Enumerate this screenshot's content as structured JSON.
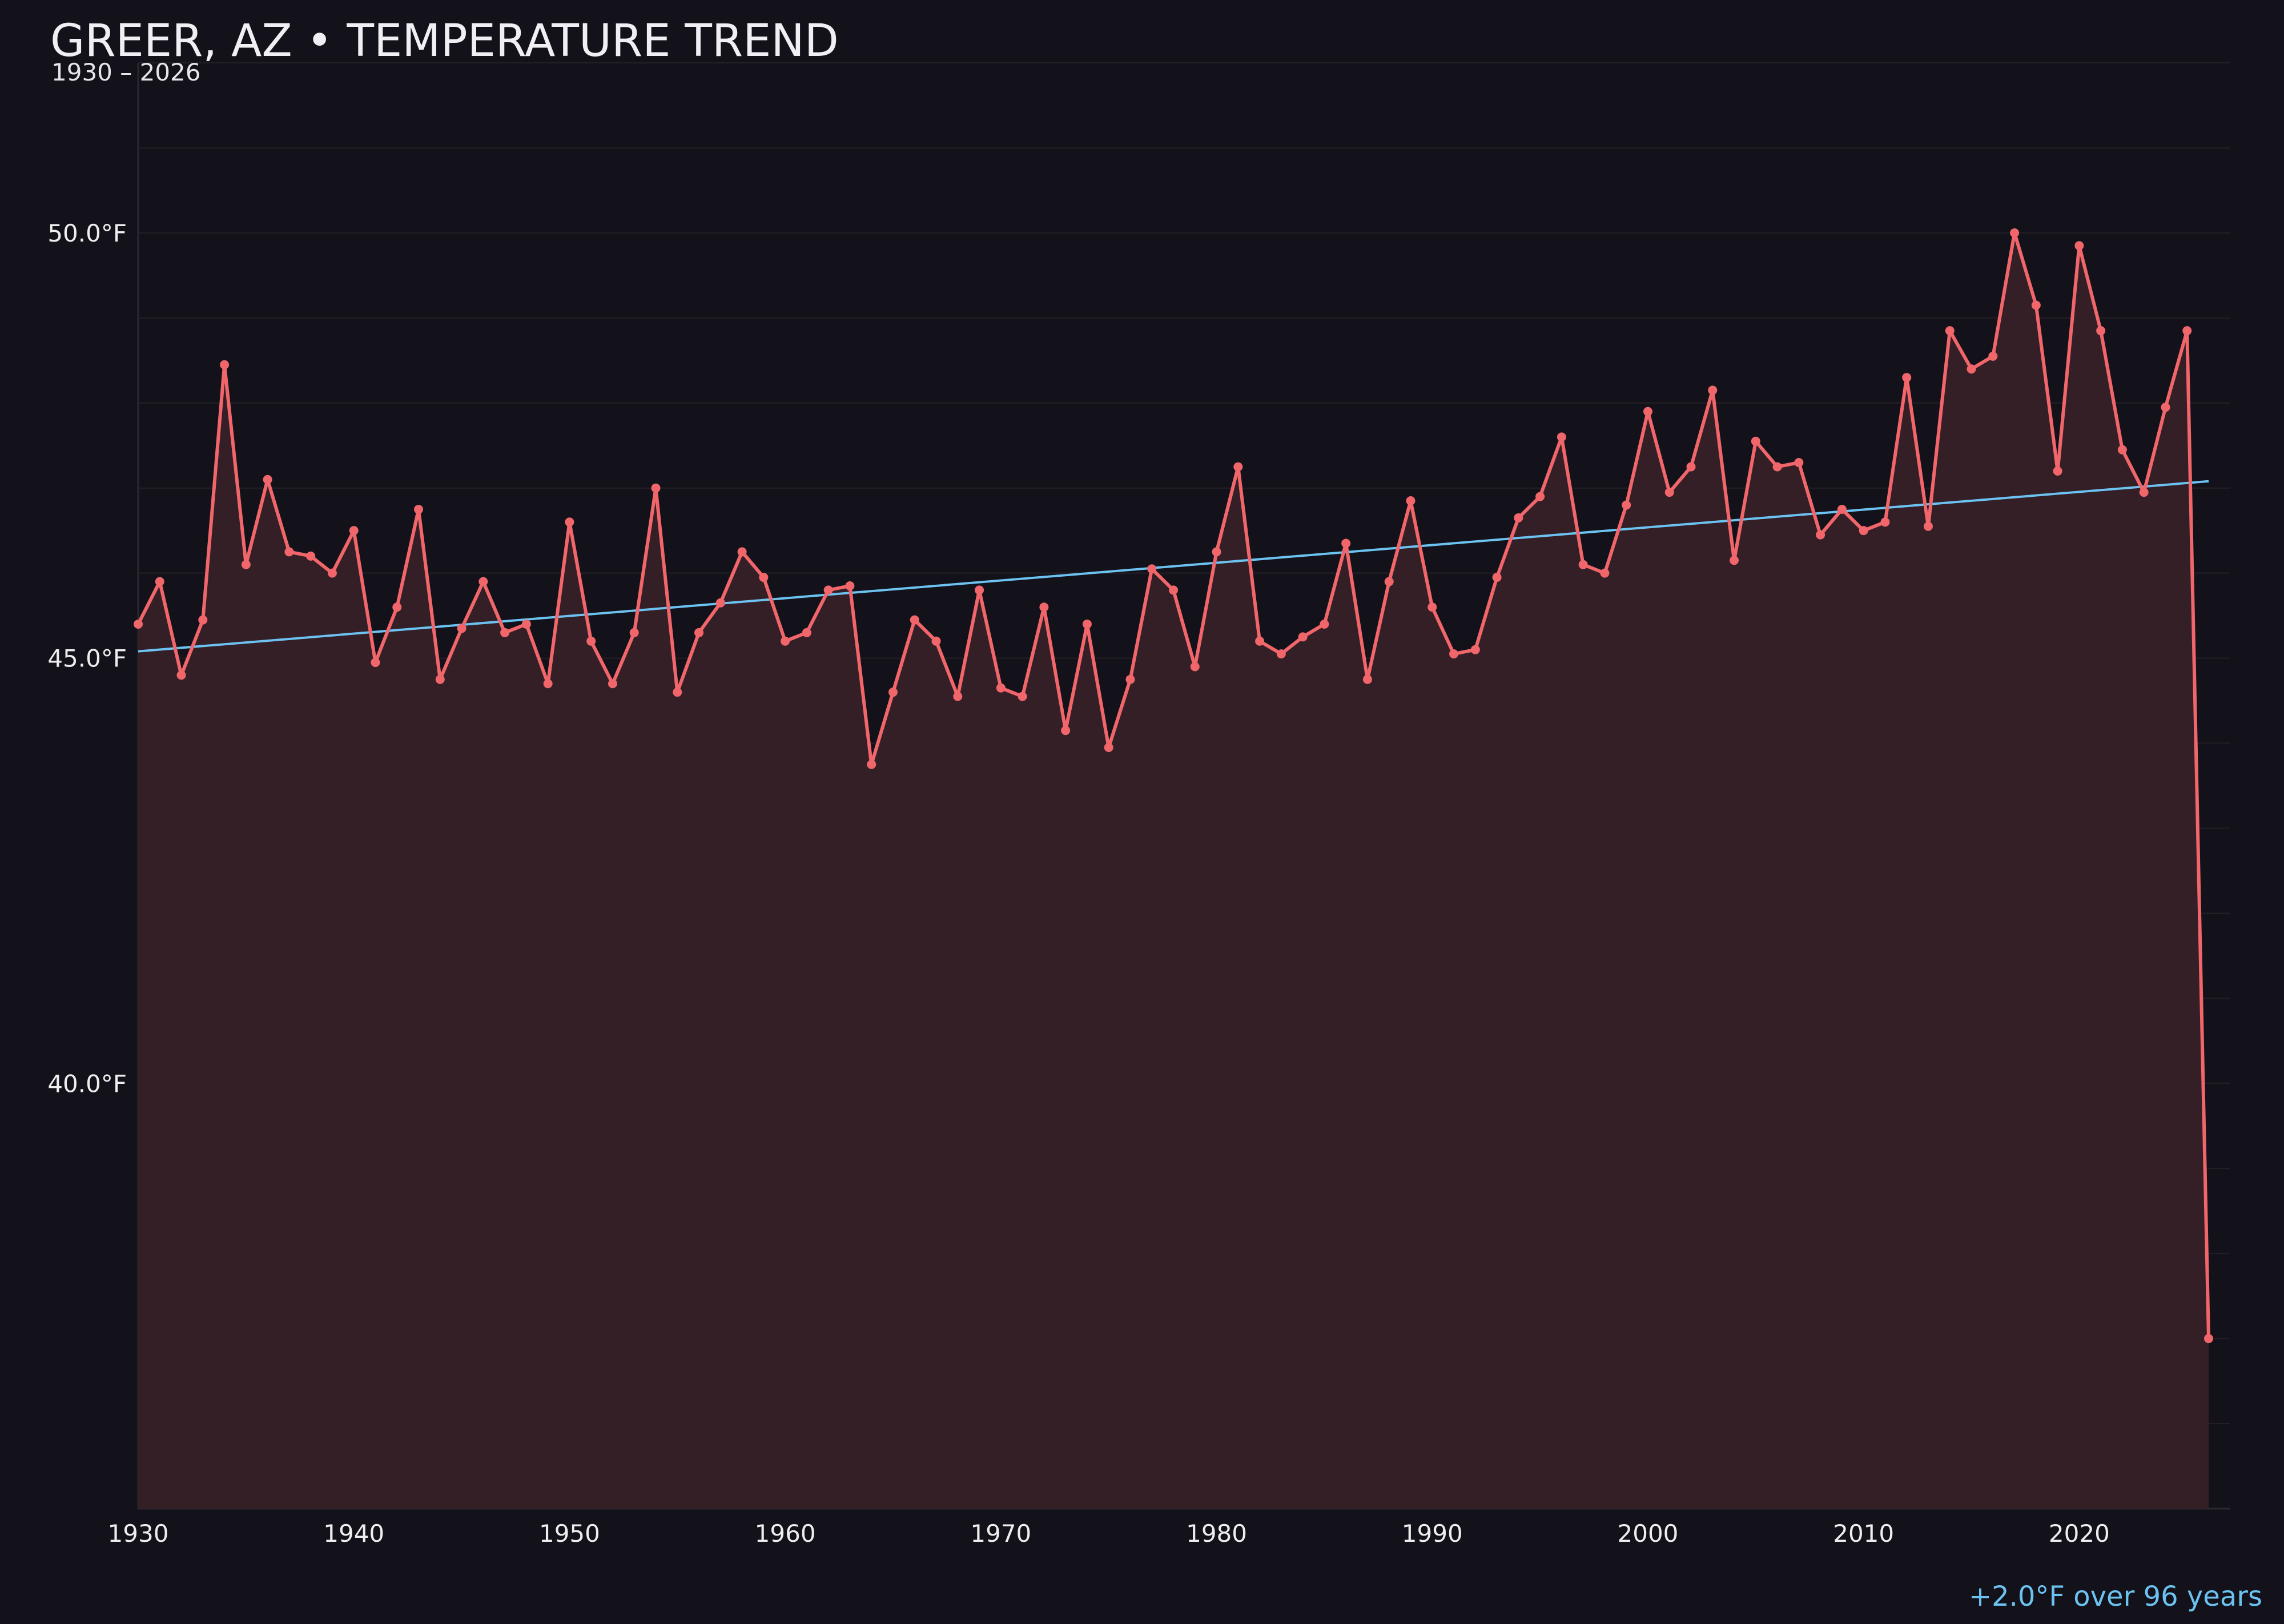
{
  "colors": {
    "background": "#13121a",
    "series": "#f0666b",
    "fill": "#351f26",
    "trend": "#6cc3f2",
    "grid": "#241f27",
    "text": "#f0f0f4"
  },
  "chart_data": {
    "type": "line",
    "title": "GREER, AZ • TEMPERATURE TREND",
    "subtitle": "1930 – 2026",
    "xlabel": "",
    "ylabel": "",
    "xlim": [
      1930,
      2027
    ],
    "ylim": [
      35,
      52
    ],
    "grid": true,
    "x_ticks": [
      1930,
      1940,
      1950,
      1960,
      1970,
      1980,
      1990,
      2000,
      2010,
      2020
    ],
    "y_ticks": [
      {
        "value": 40,
        "label": "40.0°F"
      },
      {
        "value": 45,
        "label": "45.0°F"
      },
      {
        "value": 50,
        "label": "50.0°F"
      }
    ],
    "series": [
      {
        "x": [
          1930,
          1931,
          1932,
          1933,
          1934,
          1935,
          1936,
          1937,
          1938,
          1939,
          1940,
          1941,
          1942,
          1943,
          1944,
          1945,
          1946,
          1947,
          1948,
          1949,
          1950,
          1951,
          1952,
          1953,
          1954,
          1955,
          1956,
          1957,
          1958,
          1959,
          1960,
          1961,
          1962,
          1963,
          1964,
          1965,
          1966,
          1967,
          1968,
          1969,
          1970,
          1971,
          1972,
          1973,
          1974,
          1975,
          1976,
          1977,
          1978,
          1979,
          1980,
          1981,
          1982,
          1983,
          1984,
          1985,
          1986,
          1987,
          1988,
          1989,
          1990,
          1991,
          1992,
          1993,
          1994,
          1995,
          1996,
          1997,
          1998,
          1999,
          2000,
          2001,
          2002,
          2003,
          2004,
          2005,
          2006,
          2007,
          2008,
          2009,
          2010,
          2011,
          2012,
          2013,
          2014,
          2015,
          2016,
          2017,
          2018,
          2019,
          2020,
          2021,
          2022,
          2023,
          2024,
          2025,
          2026
        ],
        "y": [
          45.4,
          45.9,
          44.8,
          45.45,
          48.45,
          46.1,
          47.1,
          46.25,
          46.2,
          46.0,
          46.5,
          44.95,
          45.6,
          46.75,
          44.75,
          45.35,
          45.9,
          45.3,
          45.4,
          44.7,
          46.6,
          45.2,
          44.7,
          45.3,
          47.0,
          44.6,
          45.3,
          45.65,
          46.25,
          45.95,
          45.2,
          45.3,
          45.8,
          45.85,
          43.75,
          44.6,
          45.45,
          45.2,
          44.55,
          45.8,
          44.65,
          44.55,
          45.6,
          44.15,
          45.4,
          43.95,
          44.75,
          46.05,
          45.8,
          44.9,
          46.25,
          47.25,
          45.2,
          45.05,
          45.25,
          45.4,
          46.35,
          44.75,
          45.9,
          46.85,
          45.6,
          45.05,
          45.1,
          45.95,
          46.65,
          46.9,
          47.6,
          46.1,
          46.0,
          46.8,
          47.9,
          46.95,
          47.25,
          48.15,
          46.15,
          47.55,
          47.25,
          47.3,
          46.45,
          46.75,
          46.5,
          46.6,
          48.3,
          46.55,
          48.85,
          48.4,
          48.55,
          50.0,
          49.15,
          47.2,
          49.85,
          48.85,
          47.45,
          46.95,
          47.95,
          48.85,
          37.0
        ]
      }
    ],
    "trend_line": {
      "x": [
        1930,
        2026
      ],
      "y": [
        45.08,
        47.08
      ]
    },
    "annotation": "+2.0°F over 96 years"
  }
}
